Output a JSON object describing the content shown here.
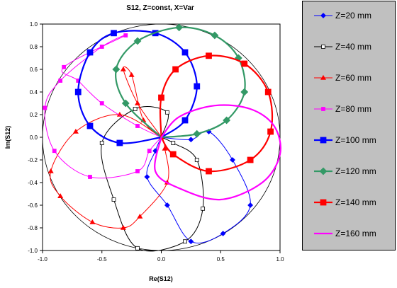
{
  "chart_data": {
    "type": "line",
    "title": "S12, Z=const, X=Var",
    "xlabel": "Re(S12)",
    "ylabel": "Im(S12)",
    "xlim": [
      -1.0,
      1.0
    ],
    "ylim": [
      -1.0,
      1.0
    ],
    "xticks": [
      "-1.0",
      "-0.5",
      "0.0",
      "0.5",
      "1.0"
    ],
    "yticks": [
      "1.0",
      "0.8",
      "0.6",
      "0.4",
      "0.2",
      "0.0",
      "-0.2",
      "-0.4",
      "-0.6",
      "-0.8",
      "-1.0"
    ],
    "grid": false,
    "legend_position": "right",
    "unit_circle": true,
    "series": [
      {
        "name": "Z=20 mm",
        "color": "#0000ff",
        "marker": "diamond",
        "fill": "#0000ff",
        "width": 1,
        "points": [
          [
            0,
            0
          ],
          [
            0.25,
            -0.02
          ],
          [
            0.4,
            0.05
          ],
          [
            0.6,
            -0.2
          ],
          [
            0.75,
            -0.6
          ],
          [
            0.52,
            -0.85
          ],
          [
            0.25,
            -0.92
          ],
          [
            0.05,
            -0.6
          ],
          [
            -0.12,
            -0.35
          ],
          [
            -0.05,
            -0.12
          ],
          [
            0,
            0
          ]
        ]
      },
      {
        "name": "Z=40 mm",
        "color": "#000000",
        "marker": "square",
        "fill": "#ffffff",
        "width": 1,
        "points": [
          [
            0,
            0
          ],
          [
            0.05,
            0.22
          ],
          [
            -0.22,
            0.25
          ],
          [
            -0.5,
            -0.05
          ],
          [
            -0.4,
            -0.55
          ],
          [
            -0.2,
            -0.98
          ],
          [
            0.2,
            -0.92
          ],
          [
            0.35,
            -0.63
          ],
          [
            0.3,
            -0.2
          ],
          [
            0.1,
            -0.05
          ],
          [
            0,
            0
          ]
        ]
      },
      {
        "name": "Z=60 mm",
        "color": "#ff0000",
        "marker": "triangle",
        "fill": "#ff0000",
        "width": 1,
        "points": [
          [
            0,
            0
          ],
          [
            -0.35,
            0.2
          ],
          [
            -0.72,
            0.05
          ],
          [
            -0.93,
            -0.3
          ],
          [
            -0.85,
            -0.52
          ],
          [
            -0.58,
            -0.75
          ],
          [
            -0.32,
            -0.8
          ],
          [
            -0.18,
            -0.7
          ],
          [
            0.05,
            -0.4
          ],
          [
            0.03,
            -0.1
          ],
          [
            0,
            0
          ],
          [
            -0.2,
            0.3
          ],
          [
            -0.32,
            0.6
          ],
          [
            -0.25,
            0.55
          ],
          [
            -0.15,
            0.15
          ],
          [
            0,
            0
          ]
        ]
      },
      {
        "name": "Z=80 mm",
        "color": "#ff00ff",
        "marker": "square",
        "fill": "#ff00ff",
        "width": 1,
        "points": [
          [
            0,
            0
          ],
          [
            -0.2,
            0.1
          ],
          [
            -0.5,
            0.3
          ],
          [
            -0.7,
            0.5
          ],
          [
            -0.82,
            0.62
          ],
          [
            -0.3,
            0.9
          ],
          [
            -0.5,
            0.8
          ],
          [
            -0.85,
            0.5
          ],
          [
            -0.98,
            0.26
          ],
          [
            -0.9,
            -0.12
          ],
          [
            -0.6,
            -0.35
          ],
          [
            -0.2,
            -0.3
          ],
          [
            -0.1,
            -0.12
          ],
          [
            0,
            0
          ]
        ]
      },
      {
        "name": "Z=100 mm",
        "color": "#0000ff",
        "marker": "square",
        "fill": "#0000ff",
        "width": 2.2,
        "points": [
          [
            0,
            0
          ],
          [
            -0.35,
            -0.05
          ],
          [
            -0.6,
            0.1
          ],
          [
            -0.7,
            0.4
          ],
          [
            -0.6,
            0.75
          ],
          [
            -0.4,
            0.92
          ],
          [
            -0.05,
            0.92
          ],
          [
            0.2,
            0.75
          ],
          [
            0.3,
            0.45
          ],
          [
            0.2,
            0.15
          ],
          [
            0,
            0
          ]
        ]
      },
      {
        "name": "Z=120 mm",
        "color": "#339966",
        "marker": "diamond",
        "fill": "#339966",
        "width": 2.2,
        "points": [
          [
            0,
            0
          ],
          [
            -0.3,
            0.3
          ],
          [
            -0.38,
            0.6
          ],
          [
            -0.2,
            0.85
          ],
          [
            0.15,
            0.97
          ],
          [
            0.45,
            0.9
          ],
          [
            0.65,
            0.7
          ],
          [
            0.7,
            0.4
          ],
          [
            0.55,
            0.15
          ],
          [
            0.3,
            0.03
          ],
          [
            0,
            0
          ]
        ]
      },
      {
        "name": "Z=140 mm",
        "color": "#ff0000",
        "marker": "square",
        "fill": "#ff0000",
        "width": 2.2,
        "points": [
          [
            0,
            0
          ],
          [
            0,
            0.35
          ],
          [
            0.12,
            0.6
          ],
          [
            0.4,
            0.72
          ],
          [
            0.7,
            0.65
          ],
          [
            0.9,
            0.4
          ],
          [
            0.92,
            0.05
          ],
          [
            0.75,
            -0.2
          ],
          [
            0.4,
            -0.3
          ],
          [
            0.1,
            -0.15
          ],
          [
            0,
            0
          ]
        ]
      },
      {
        "name": "Z=160 mm",
        "color": "#ff00ff",
        "marker": "none",
        "fill": "#ff00ff",
        "width": 2.2,
        "points": [
          [
            0,
            0
          ],
          [
            0.15,
            0.18
          ],
          [
            0.45,
            0.28
          ],
          [
            0.75,
            0.25
          ],
          [
            0.95,
            0.1
          ],
          [
            1.0,
            -0.15
          ],
          [
            0.85,
            -0.4
          ],
          [
            0.5,
            -0.55
          ],
          [
            0.15,
            -0.45
          ],
          [
            -0.05,
            -0.3
          ],
          [
            0,
            0
          ]
        ]
      }
    ]
  }
}
